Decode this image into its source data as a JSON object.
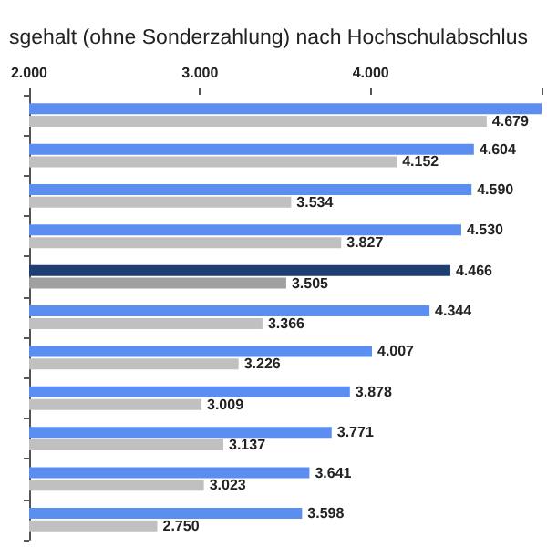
{
  "chart_data": {
    "type": "bar",
    "orientation": "horizontal",
    "title": "sgehalt (ohne Sonderzahlung) nach Hochschulabschlus",
    "categories": [
      null,
      null,
      null,
      null,
      null,
      null,
      null,
      null,
      null,
      null,
      null
    ],
    "series": [
      {
        "colors": [
          "#5b8ef0",
          "#5b8ef0",
          "#5b8ef0",
          "#5b8ef0",
          "#1f3f73",
          "#5b8ef0",
          "#5b8ef0",
          "#5b8ef0",
          "#5b8ef0",
          "#5b8ef0",
          "#5b8ef0"
        ],
        "values": [
          5000,
          4604,
          4590,
          4530,
          4466,
          4344,
          4007,
          3878,
          3771,
          3641,
          3598
        ],
        "value_labels": [
          null,
          "4.604",
          "4.590",
          "4.530",
          "4.466",
          "4.344",
          "4.007",
          "3.878",
          "3.771",
          "3.641",
          "3.598"
        ]
      },
      {
        "colors": [
          "#c0c0c0",
          "#c0c0c0",
          "#c0c0c0",
          "#c0c0c0",
          "#a0a0a0",
          "#c0c0c0",
          "#c0c0c0",
          "#c0c0c0",
          "#c0c0c0",
          "#c0c0c0",
          "#c0c0c0"
        ],
        "values": [
          4679,
          4152,
          3534,
          3827,
          3505,
          3366,
          3226,
          3009,
          3137,
          3023,
          2750
        ],
        "value_labels": [
          "4.679",
          "4.152",
          "3.534",
          "3.827",
          "3.505",
          "3.366",
          "3.226",
          "3.009",
          "3.137",
          "3.023",
          "2.750"
        ]
      }
    ],
    "xlim": [
      2000,
      5000
    ],
    "xticks": [
      {
        "value": 2000,
        "label": "2.000"
      },
      {
        "value": 3000,
        "label": "3.000"
      },
      {
        "value": 4000,
        "label": "4.000"
      },
      {
        "value": 5000,
        "label": null
      }
    ],
    "grid": false
  }
}
